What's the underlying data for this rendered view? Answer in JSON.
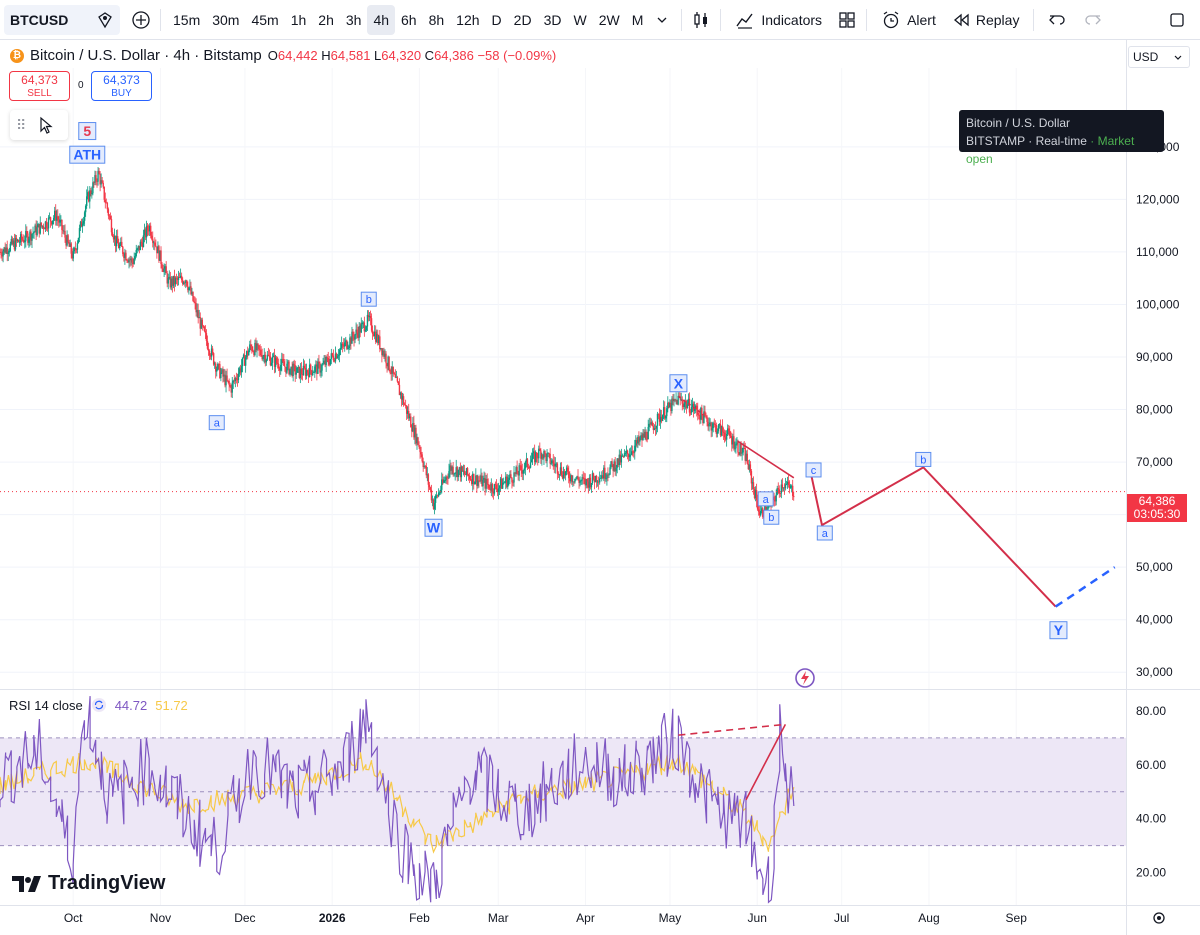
{
  "toolbar": {
    "symbol": "BTCUSD",
    "timeframes": [
      "15m",
      "30m",
      "45m",
      "1h",
      "2h",
      "3h",
      "4h",
      "6h",
      "8h",
      "12h",
      "D",
      "2D",
      "3D",
      "W",
      "2W",
      "M"
    ],
    "active_timeframe": "4h",
    "indicators_label": "Indicators",
    "alert_label": "Alert",
    "replay_label": "Replay"
  },
  "legend": {
    "title": "Bitcoin / U.S. Dollar · 4h · Bitstamp",
    "o_label": "O",
    "o_value": "64,442",
    "h_label": "H",
    "h_value": "64,581",
    "l_label": "L",
    "l_value": "64,320",
    "c_label": "C",
    "c_value": "64,386",
    "change": "−58 (−0.09%)",
    "sell_price": "64,373",
    "sell_label": "SELL",
    "buy_price": "64,373",
    "buy_label": "BUY",
    "spread": "0"
  },
  "currency": "USD",
  "tooltip": {
    "line1": "Bitcoin / U.S. Dollar",
    "exchange": "BITSTAMP",
    "realtime": "Real-time",
    "market": "Market open"
  },
  "last_price": {
    "price": "64,386",
    "countdown": "03:05:30"
  },
  "rsi": {
    "label": "RSI 14 close",
    "value": "44.72",
    "ma_value": "51.72"
  },
  "brand": "TradingView",
  "colors": {
    "up": "#089981",
    "down": "#f23645",
    "wave": "#d32f4a",
    "projection": "#2962ff",
    "rsi": "#7e57c2",
    "rsi_ma": "#f7c948",
    "rsi_band": "#ede7f6",
    "label_blue": "#2962ff"
  },
  "chart_data": [
    {
      "type": "line",
      "title": "Bitcoin / U.S. Dollar · 4h · Bitstamp",
      "y_ticks": [
        30000,
        40000,
        50000,
        60000,
        70000,
        80000,
        90000,
        100000,
        110000,
        120000,
        130000
      ],
      "y_tick_labels": [
        "30,000",
        "40,000",
        "50,000",
        "60,000",
        "70,000",
        "80,000",
        "90,000",
        "100,000",
        "110,000",
        "120,000",
        "130,000"
      ],
      "ylim": [
        27000,
        145000
      ],
      "x_tick_labels": [
        "Oct",
        "Nov",
        "Dec",
        "2026",
        "Feb",
        "Mar",
        "Apr",
        "May",
        "Jun",
        "Jul",
        "Aug",
        "Sep"
      ],
      "series": [
        {
          "x": [
            "2025-09-05",
            "2025-09-15",
            "2025-09-25",
            "2025-10-01",
            "2025-10-06",
            "2025-10-10",
            "2025-10-16",
            "2025-10-22",
            "2025-10-28",
            "2025-11-04",
            "2025-11-10",
            "2025-11-16",
            "2025-11-21",
            "2025-11-26",
            "2025-12-03",
            "2025-12-12",
            "2025-12-20",
            "2025-12-28",
            "2026-01-05",
            "2026-01-14",
            "2026-01-20",
            "2026-01-26",
            "2026-02-01",
            "2026-02-06",
            "2026-02-12",
            "2026-02-20",
            "2026-02-28",
            "2026-03-08",
            "2026-03-16",
            "2026-03-24",
            "2026-04-01",
            "2026-04-08",
            "2026-04-15",
            "2026-04-22",
            "2026-04-28",
            "2026-05-04",
            "2026-05-10",
            "2026-05-16",
            "2026-05-22",
            "2026-05-28",
            "2026-06-02",
            "2026-06-06",
            "2026-06-10",
            "2026-06-14"
          ],
          "values": [
            110000,
            113000,
            117000,
            109000,
            120000,
            125000,
            112000,
            108000,
            115000,
            104000,
            105000,
            95000,
            88000,
            84000,
            92000,
            89000,
            87000,
            88000,
            92000,
            97000,
            90000,
            82000,
            73000,
            62000,
            69000,
            67000,
            65000,
            68000,
            72000,
            68000,
            66000,
            68000,
            71000,
            75000,
            79000,
            82000,
            80000,
            77000,
            75000,
            71000,
            60000,
            62000,
            66000,
            64386
          ]
        }
      ],
      "wave_labels": [
        {
          "text": "5",
          "date": "2025-10-06",
          "price": 133000
        },
        {
          "text": "ATH",
          "date": "2025-10-06",
          "price": 128500
        },
        {
          "text": "a",
          "date": "2025-11-21",
          "price": 77500
        },
        {
          "text": "b",
          "date": "2026-01-14",
          "price": 101000
        },
        {
          "text": "W",
          "date": "2026-02-06",
          "price": 57500
        },
        {
          "text": "X",
          "date": "2026-05-04",
          "price": 85000
        },
        {
          "text": "a",
          "date": "2026-06-04",
          "price": 63000
        },
        {
          "text": "b",
          "date": "2026-06-06",
          "price": 59500
        },
        {
          "text": "c",
          "date": "2026-06-21",
          "price": 68500
        },
        {
          "text": "a",
          "date": "2026-06-25",
          "price": 56500
        },
        {
          "text": "b",
          "date": "2026-07-30",
          "price": 70500
        },
        {
          "text": "Y",
          "date": "2026-09-16",
          "price": 38000
        }
      ],
      "projection_path": {
        "dates": [
          "2026-06-20",
          "2026-06-24",
          "2026-07-30",
          "2026-09-15"
        ],
        "prices": [
          68000,
          58000,
          69000,
          42500
        ]
      },
      "projection_dashed": {
        "dates": [
          "2026-09-15",
          "2026-10-06"
        ],
        "prices": [
          42500,
          50000
        ]
      },
      "trendlines": [
        {
          "dates": [
            "2026-05-04",
            "2026-05-13"
          ],
          "prices": [
            82500,
            79000
          ]
        },
        {
          "dates": [
            "2026-05-25",
            "2026-06-14"
          ],
          "prices": [
            74000,
            67000
          ]
        }
      ]
    },
    {
      "type": "line",
      "title": "RSI 14 close",
      "y_ticks": [
        20,
        40,
        60,
        80
      ],
      "y_tick_labels": [
        "20.00",
        "40.00",
        "60.00",
        "80.00"
      ],
      "ylim": [
        8,
        87
      ],
      "band": [
        30,
        70
      ],
      "midline": 50,
      "series": [
        {
          "name": "RSI",
          "x": [
            "2025-09-05",
            "2025-09-20",
            "2025-10-01",
            "2025-10-06",
            "2025-10-15",
            "2025-10-28",
            "2025-11-10",
            "2025-11-21",
            "2025-12-05",
            "2025-12-20",
            "2026-01-05",
            "2026-01-14",
            "2026-01-25",
            "2026-02-01",
            "2026-02-06",
            "2026-02-20",
            "2026-03-10",
            "2026-04-01",
            "2026-04-15",
            "2026-05-04",
            "2026-05-16",
            "2026-05-28",
            "2026-06-02",
            "2026-06-06",
            "2026-06-10",
            "2026-06-14"
          ],
          "values": [
            55,
            65,
            25,
            82,
            45,
            60,
            42,
            28,
            62,
            48,
            58,
            78,
            32,
            20,
            14,
            58,
            42,
            62,
            55,
            70,
            45,
            38,
            22,
            14,
            72,
            44.72
          ]
        },
        {
          "name": "RSI MA",
          "x": [
            "2025-09-05",
            "2025-10-06",
            "2025-11-10",
            "2025-12-20",
            "2026-01-14",
            "2026-02-06",
            "2026-03-10",
            "2026-04-15",
            "2026-05-04",
            "2026-05-28",
            "2026-06-06",
            "2026-06-14"
          ],
          "values": [
            52,
            62,
            45,
            52,
            62,
            30,
            48,
            56,
            62,
            42,
            30,
            51.72
          ]
        }
      ],
      "trendlines": [
        {
          "dates": [
            "2026-05-04",
            "2026-06-11"
          ],
          "values": [
            71,
            75
          ]
        },
        {
          "dates": [
            "2026-05-28",
            "2026-06-11"
          ],
          "values": [
            47,
            75
          ]
        }
      ]
    }
  ]
}
